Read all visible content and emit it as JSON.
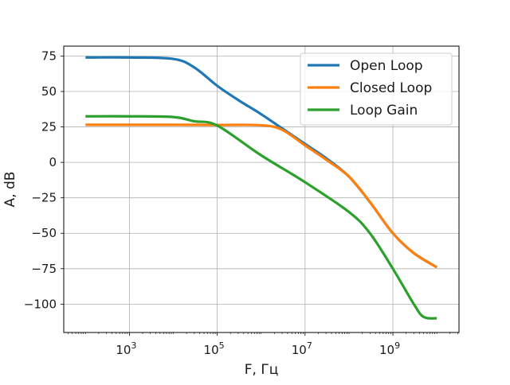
{
  "chart_data": {
    "type": "line",
    "title": "",
    "xlabel": "F, Гц",
    "ylabel": "A, dB",
    "x_scale": "log",
    "xlim": [
      32,
      32000000000
    ],
    "ylim": [
      -120,
      82
    ],
    "x_ticks": [
      {
        "value": 1000,
        "base": "10",
        "exp": "3"
      },
      {
        "value": 100000,
        "base": "10",
        "exp": "5"
      },
      {
        "value": 10000000,
        "base": "10",
        "exp": "7"
      },
      {
        "value": 1000000000,
        "base": "10",
        "exp": "9"
      }
    ],
    "y_ticks": [
      {
        "value": 75,
        "label": "75"
      },
      {
        "value": 50,
        "label": "50"
      },
      {
        "value": 25,
        "label": "25"
      },
      {
        "value": 0,
        "label": "0"
      },
      {
        "value": -25,
        "label": "−25"
      },
      {
        "value": -50,
        "label": "−50"
      },
      {
        "value": -75,
        "label": "−75"
      },
      {
        "value": -100,
        "label": "−100"
      }
    ],
    "grid": true,
    "legend_position": "top-right",
    "series": [
      {
        "name": "Open Loop",
        "color": "#1f77b4",
        "x": [
          100,
          1000,
          10000,
          30000,
          100000,
          300000,
          1000000,
          3000000,
          10000000,
          30000000,
          100000000,
          300000000,
          1000000000,
          3000000000,
          10000000000
        ],
        "y": [
          74,
          74,
          73,
          67,
          54,
          44,
          34,
          24,
          13,
          3,
          -10,
          -28,
          -50,
          -64,
          -74
        ]
      },
      {
        "name": "Closed Loop",
        "color": "#ff7f0e",
        "x": [
          100,
          1000,
          10000,
          100000,
          1000000,
          3000000,
          10000000,
          30000000,
          100000000,
          300000000,
          1000000000,
          3000000000,
          10000000000
        ],
        "y": [
          26.5,
          26.5,
          26.5,
          26.4,
          26.2,
          23,
          12,
          2,
          -10,
          -28,
          -50,
          -64,
          -74
        ]
      },
      {
        "name": "Loop Gain",
        "color": "#2ca02c",
        "x": [
          100,
          1000,
          10000,
          30000,
          100000,
          1000000,
          10000000,
          100000000,
          300000000,
          1000000000,
          3000000000,
          5000000000,
          10000000000
        ],
        "y": [
          32.5,
          32.5,
          32,
          29,
          26,
          5,
          -14,
          -35,
          -50,
          -75,
          -100,
          -109,
          -110
        ]
      }
    ]
  }
}
